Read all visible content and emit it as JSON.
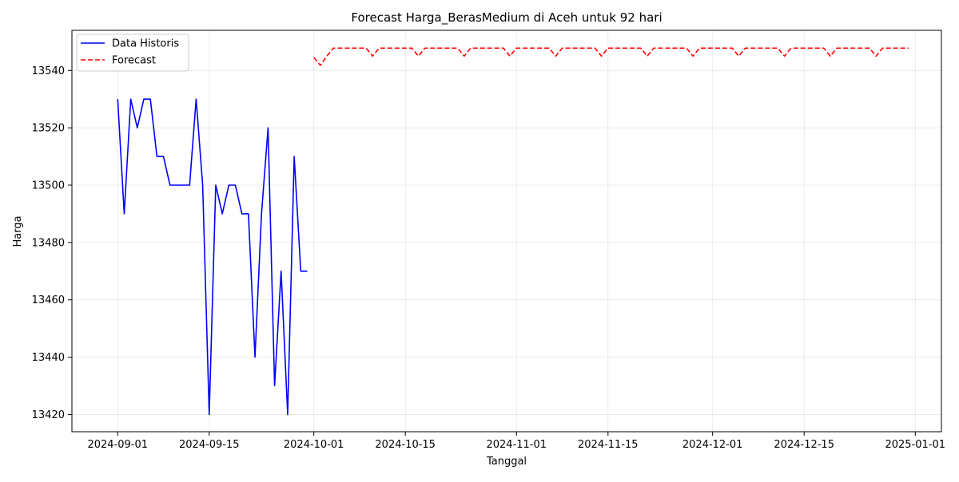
{
  "chart_data": {
    "type": "line",
    "title": "Forecast Harga_BerasMedium di Aceh untuk 92 hari",
    "xlabel": "Tanggal",
    "ylabel": "Harga",
    "x_range": [
      "2024-08-25",
      "2025-01-05"
    ],
    "ylim": [
      13414,
      13554
    ],
    "x_ticks": [
      "2024-09-01",
      "2024-09-15",
      "2024-10-01",
      "2024-10-15",
      "2024-11-01",
      "2024-11-15",
      "2024-12-01",
      "2024-12-15",
      "2025-01-01"
    ],
    "y_ticks": [
      13420,
      13440,
      13460,
      13480,
      13500,
      13520,
      13540
    ],
    "grid": true,
    "legend": {
      "position": "top-left",
      "entries": [
        "Data Historis",
        "Forecast"
      ]
    },
    "series": [
      {
        "name": "Data Historis",
        "color": "#0000ff",
        "style": "solid",
        "x": [
          "2024-09-01",
          "2024-09-02",
          "2024-09-03",
          "2024-09-04",
          "2024-09-05",
          "2024-09-06",
          "2024-09-07",
          "2024-09-08",
          "2024-09-09",
          "2024-09-10",
          "2024-09-11",
          "2024-09-12",
          "2024-09-13",
          "2024-09-14",
          "2024-09-15",
          "2024-09-16",
          "2024-09-17",
          "2024-09-18",
          "2024-09-19",
          "2024-09-20",
          "2024-09-21",
          "2024-09-22",
          "2024-09-23",
          "2024-09-24",
          "2024-09-25",
          "2024-09-26",
          "2024-09-27",
          "2024-09-28",
          "2024-09-29",
          "2024-09-30"
        ],
        "y": [
          13530,
          13490,
          13530,
          13520,
          13530,
          13530,
          13510,
          13510,
          13500,
          13500,
          13500,
          13500,
          13530,
          13500,
          13420,
          13500,
          13490,
          13500,
          13500,
          13490,
          13490,
          13440,
          13490,
          13520,
          13430,
          13470,
          13420,
          13510,
          13470,
          13470
        ]
      },
      {
        "name": "Forecast",
        "color": "#ff0000",
        "style": "dashed",
        "x": [
          "2024-10-01",
          "2024-10-02",
          "2024-10-03",
          "2024-10-04",
          "2024-10-05",
          "2024-10-06",
          "2024-10-07",
          "2024-10-08",
          "2024-10-09",
          "2024-10-10",
          "2024-10-11",
          "2024-10-12",
          "2024-10-13",
          "2024-10-14",
          "2024-10-15",
          "2024-10-16",
          "2024-10-17",
          "2024-10-18",
          "2024-10-19",
          "2024-10-20",
          "2024-10-21",
          "2024-10-22",
          "2024-10-23",
          "2024-10-24",
          "2024-10-25",
          "2024-10-26",
          "2024-10-27",
          "2024-10-28",
          "2024-10-29",
          "2024-10-30",
          "2024-10-31",
          "2024-11-01",
          "2024-11-02",
          "2024-11-03",
          "2024-11-04",
          "2024-11-05",
          "2024-11-06",
          "2024-11-07",
          "2024-11-08",
          "2024-11-09",
          "2024-11-10",
          "2024-11-11",
          "2024-11-12",
          "2024-11-13",
          "2024-11-14",
          "2024-11-15",
          "2024-11-16",
          "2024-11-17",
          "2024-11-18",
          "2024-11-19",
          "2024-11-20",
          "2024-11-21",
          "2024-11-22",
          "2024-11-23",
          "2024-11-24",
          "2024-11-25",
          "2024-11-26",
          "2024-11-27",
          "2024-11-28",
          "2024-11-29",
          "2024-11-30",
          "2024-12-01",
          "2024-12-02",
          "2024-12-03",
          "2024-12-04",
          "2024-12-05",
          "2024-12-06",
          "2024-12-07",
          "2024-12-08",
          "2024-12-09",
          "2024-12-10",
          "2024-12-11",
          "2024-12-12",
          "2024-12-13",
          "2024-12-14",
          "2024-12-15",
          "2024-12-16",
          "2024-12-17",
          "2024-12-18",
          "2024-12-19",
          "2024-12-20",
          "2024-12-21",
          "2024-12-22",
          "2024-12-23",
          "2024-12-24",
          "2024-12-25",
          "2024-12-26",
          "2024-12-27",
          "2024-12-28",
          "2024-12-29",
          "2024-12-30",
          "2024-12-31"
        ],
        "y": [
          13544.5,
          13541.8,
          13545,
          13547.8,
          13547.8,
          13547.8,
          13547.8,
          13547.8,
          13547.8,
          13545,
          13547.8,
          13547.8,
          13547.8,
          13547.8,
          13547.8,
          13547.8,
          13545,
          13547.8,
          13547.8,
          13547.8,
          13547.8,
          13547.8,
          13547.8,
          13545,
          13547.8,
          13547.8,
          13547.8,
          13547.8,
          13547.8,
          13547.8,
          13545,
          13547.8,
          13547.8,
          13547.8,
          13547.8,
          13547.8,
          13547.8,
          13545,
          13547.8,
          13547.8,
          13547.8,
          13547.8,
          13547.8,
          13547.8,
          13545,
          13547.8,
          13547.8,
          13547.8,
          13547.8,
          13547.8,
          13547.8,
          13545,
          13547.8,
          13547.8,
          13547.8,
          13547.8,
          13547.8,
          13547.8,
          13545,
          13547.8,
          13547.8,
          13547.8,
          13547.8,
          13547.8,
          13547.8,
          13545,
          13547.8,
          13547.8,
          13547.8,
          13547.8,
          13547.8,
          13547.8,
          13545,
          13547.8,
          13547.8,
          13547.8,
          13547.8,
          13547.8,
          13547.8,
          13545,
          13547.8,
          13547.8,
          13547.8,
          13547.8,
          13547.8,
          13547.8,
          13545,
          13547.8,
          13547.8,
          13547.8,
          13547.8,
          13547.8
        ]
      }
    ]
  }
}
